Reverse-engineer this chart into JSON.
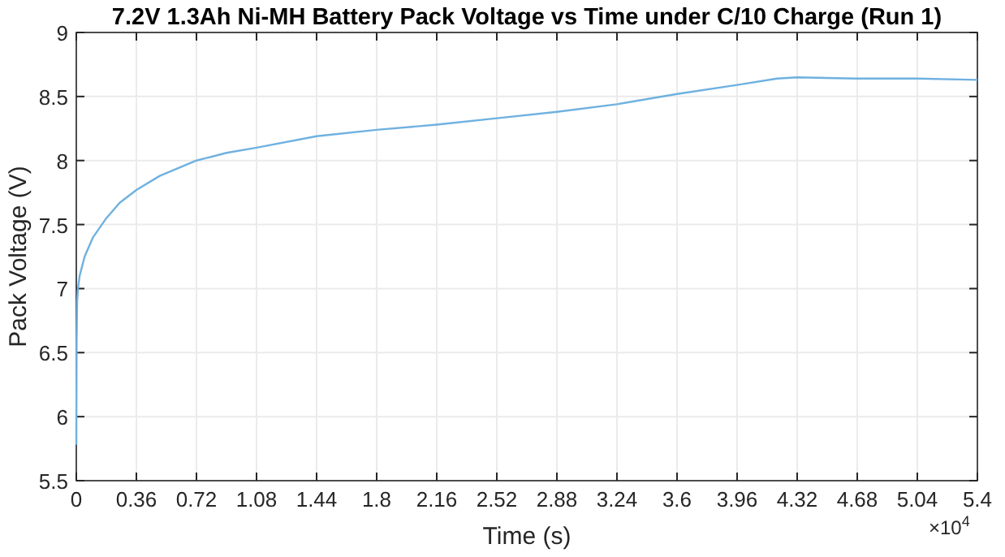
{
  "chart_data": {
    "type": "line",
    "title": "7.2V 1.3Ah Ni-MH Battery Pack Voltage vs Time under C/10 Charge (Run 1)",
    "xlabel": "Time (s)",
    "ylabel": "Pack Voltage (V)",
    "annotations": [
      "×10$^{4}$"
    ],
    "series": [
      {
        "color": "#6fb1e0",
        "x": [
          0,
          0.002,
          0.005,
          0.01,
          0.02,
          0.05,
          0.1,
          0.18,
          0.26,
          0.36,
          0.5,
          0.72,
          0.9,
          1.08,
          1.44,
          1.8,
          2.16,
          2.52,
          2.88,
          3.24,
          3.6,
          3.96,
          4.2,
          4.32,
          4.68,
          5.04,
          5.4
        ],
        "values": [
          5.78,
          6.6,
          6.9,
          7.0,
          7.1,
          7.25,
          7.4,
          7.55,
          7.67,
          7.77,
          7.88,
          8.0,
          8.06,
          8.1,
          8.19,
          8.24,
          8.28,
          8.33,
          8.38,
          8.44,
          8.52,
          8.59,
          8.64,
          8.65,
          8.64,
          8.64,
          8.63
        ]
      }
    ],
    "xlim": [
      0,
      5.4
    ],
    "xticks": [
      0,
      0.36,
      0.72,
      1.08,
      1.44,
      1.8,
      2.16,
      2.52,
      2.88,
      3.24,
      3.6,
      3.96,
      4.32,
      4.68,
      5.04,
      5.4
    ],
    "ylim": [
      5.5,
      9
    ],
    "yticks": [
      5.5,
      6,
      6.5,
      7,
      7.5,
      8,
      8.5,
      9
    ],
    "grid": true
  }
}
